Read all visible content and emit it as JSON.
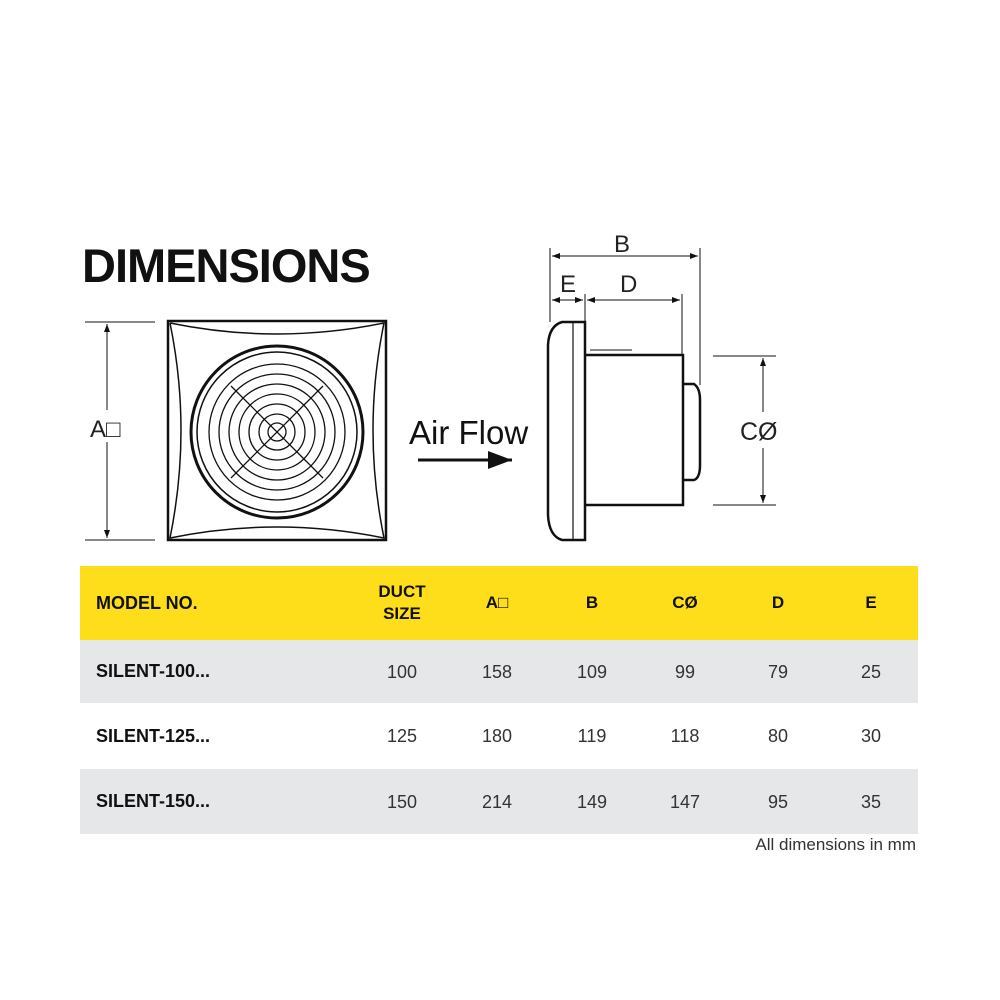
{
  "title": "DIMENSIONS",
  "diagram": {
    "label_a": "A□",
    "label_b": "B",
    "label_c": "CØ",
    "label_d": "D",
    "label_e": "E",
    "air_flow": "Air Flow"
  },
  "table": {
    "header_color": "#FEDD1A",
    "stripe_color": "#E6E7E8",
    "headers": [
      "MODEL NO.",
      "DUCT SIZE",
      "A□",
      "B",
      "CØ",
      "D",
      "E"
    ],
    "rows": [
      [
        "SILENT-100...",
        "100",
        "158",
        "109",
        "99",
        "79",
        "25"
      ],
      [
        "SILENT-125...",
        "125",
        "180",
        "119",
        "118",
        "80",
        "30"
      ],
      [
        "SILENT-150...",
        "150",
        "214",
        "149",
        "147",
        "95",
        "35"
      ]
    ],
    "note": "All dimensions in mm"
  }
}
